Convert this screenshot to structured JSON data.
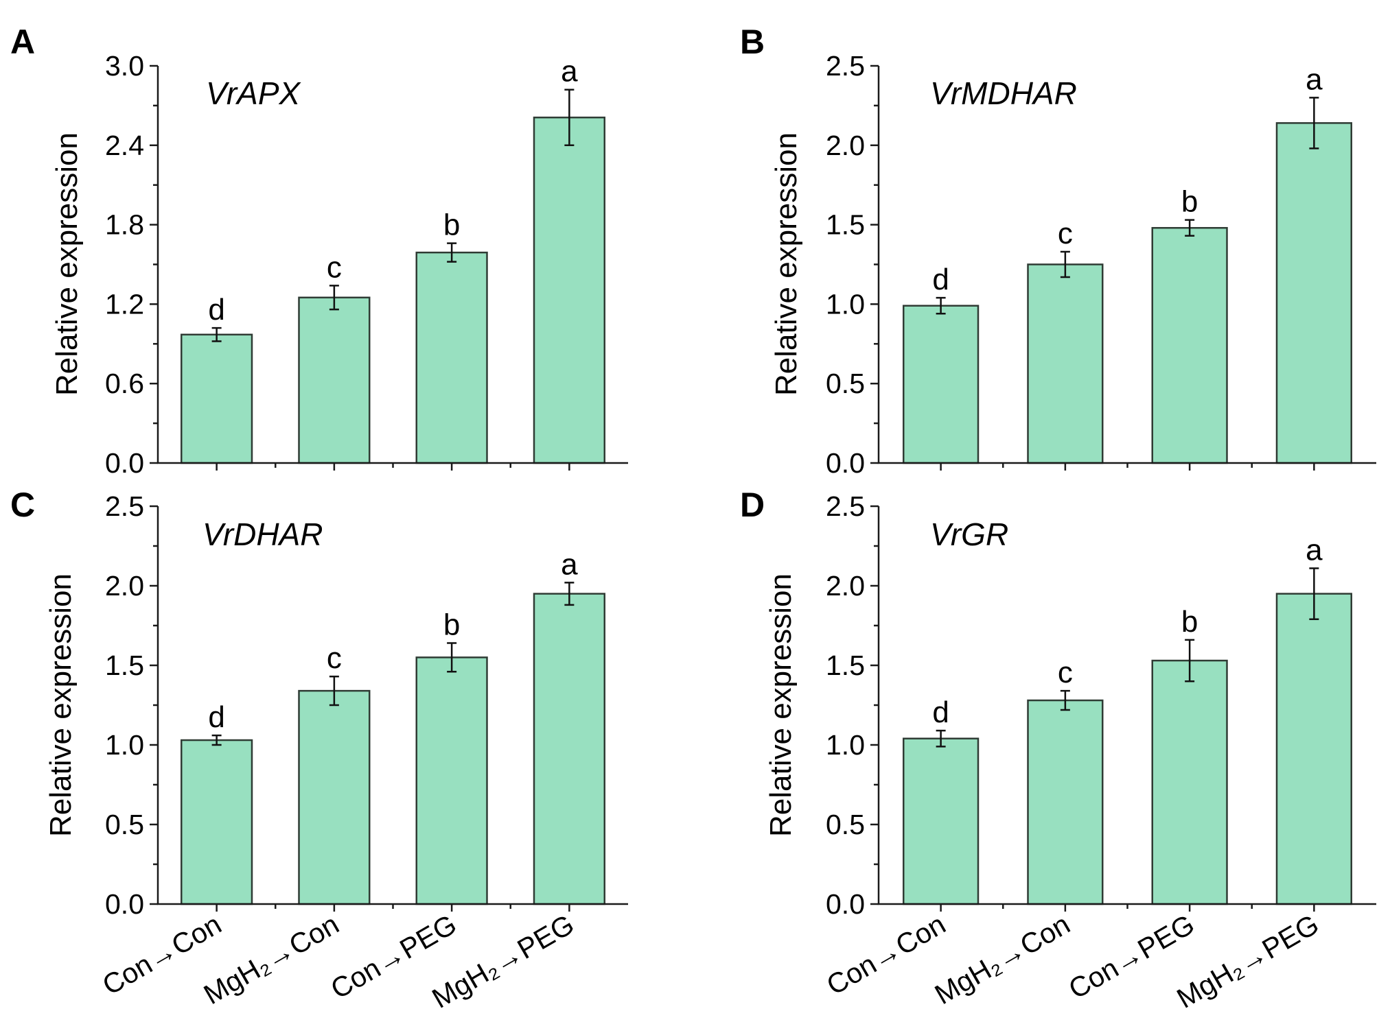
{
  "colors": {
    "bar_fill": "#98e0c0",
    "bar_stroke": "#2f3b34",
    "axis": "#1a1a1a"
  },
  "categories": [
    "Con→Con",
    "MgH₂→Con",
    "Con→PEG",
    "MgH₂→PEG"
  ],
  "chart_data": [
    {
      "type": "bar",
      "panel": "A",
      "title": "VrAPX",
      "ylabel": "Relative expression",
      "xlabel": "",
      "ylim": [
        0,
        3.0
      ],
      "yticks": [
        0.0,
        0.6,
        1.2,
        1.8,
        2.4,
        3.0
      ],
      "ytick_labels": [
        "0.0",
        "0.6",
        "1.2",
        "1.8",
        "2.4",
        "3.0"
      ],
      "categories": [
        "Con→Con",
        "MgH₂→Con",
        "Con→PEG",
        "MgH₂→PEG"
      ],
      "values": [
        0.97,
        1.25,
        1.59,
        2.61
      ],
      "errors": [
        0.05,
        0.09,
        0.07,
        0.21
      ],
      "significance": [
        "d",
        "c",
        "b",
        "a"
      ],
      "show_category_labels": false
    },
    {
      "type": "bar",
      "panel": "B",
      "title": "VrMDHAR",
      "ylabel": "Relative expression",
      "xlabel": "",
      "ylim": [
        0,
        2.5
      ],
      "yticks": [
        0.0,
        0.5,
        1.0,
        1.5,
        2.0,
        2.5
      ],
      "ytick_labels": [
        "0.0",
        "0.5",
        "1.0",
        "1.5",
        "2.0",
        "2.5"
      ],
      "categories": [
        "Con→Con",
        "MgH₂→Con",
        "Con→PEG",
        "MgH₂→PEG"
      ],
      "values": [
        0.99,
        1.25,
        1.48,
        2.14
      ],
      "errors": [
        0.05,
        0.08,
        0.05,
        0.16
      ],
      "significance": [
        "d",
        "c",
        "b",
        "a"
      ],
      "show_category_labels": false
    },
    {
      "type": "bar",
      "panel": "C",
      "title": "VrDHAR",
      "ylabel": "Relative expression",
      "xlabel": "",
      "ylim": [
        0,
        2.5
      ],
      "yticks": [
        0.0,
        0.5,
        1.0,
        1.5,
        2.0,
        2.5
      ],
      "ytick_labels": [
        "0.0",
        "0.5",
        "1.0",
        "1.5",
        "2.0",
        "2.5"
      ],
      "categories": [
        "Con→Con",
        "MgH₂→Con",
        "Con→PEG",
        "MgH₂→PEG"
      ],
      "values": [
        1.03,
        1.34,
        1.55,
        1.95
      ],
      "errors": [
        0.03,
        0.09,
        0.09,
        0.07
      ],
      "significance": [
        "d",
        "c",
        "b",
        "a"
      ],
      "show_category_labels": true
    },
    {
      "type": "bar",
      "panel": "D",
      "title": "VrGR",
      "ylabel": "Relative expression",
      "xlabel": "",
      "ylim": [
        0,
        2.5
      ],
      "yticks": [
        0.0,
        0.5,
        1.0,
        1.5,
        2.0,
        2.5
      ],
      "ytick_labels": [
        "0.0",
        "0.5",
        "1.0",
        "1.5",
        "2.0",
        "2.5"
      ],
      "categories": [
        "Con→Con",
        "MgH₂→Con",
        "Con→PEG",
        "MgH₂→PEG"
      ],
      "values": [
        1.04,
        1.28,
        1.53,
        1.95
      ],
      "errors": [
        0.05,
        0.06,
        0.13,
        0.16
      ],
      "significance": [
        "d",
        "c",
        "b",
        "a"
      ],
      "show_category_labels": true
    }
  ]
}
